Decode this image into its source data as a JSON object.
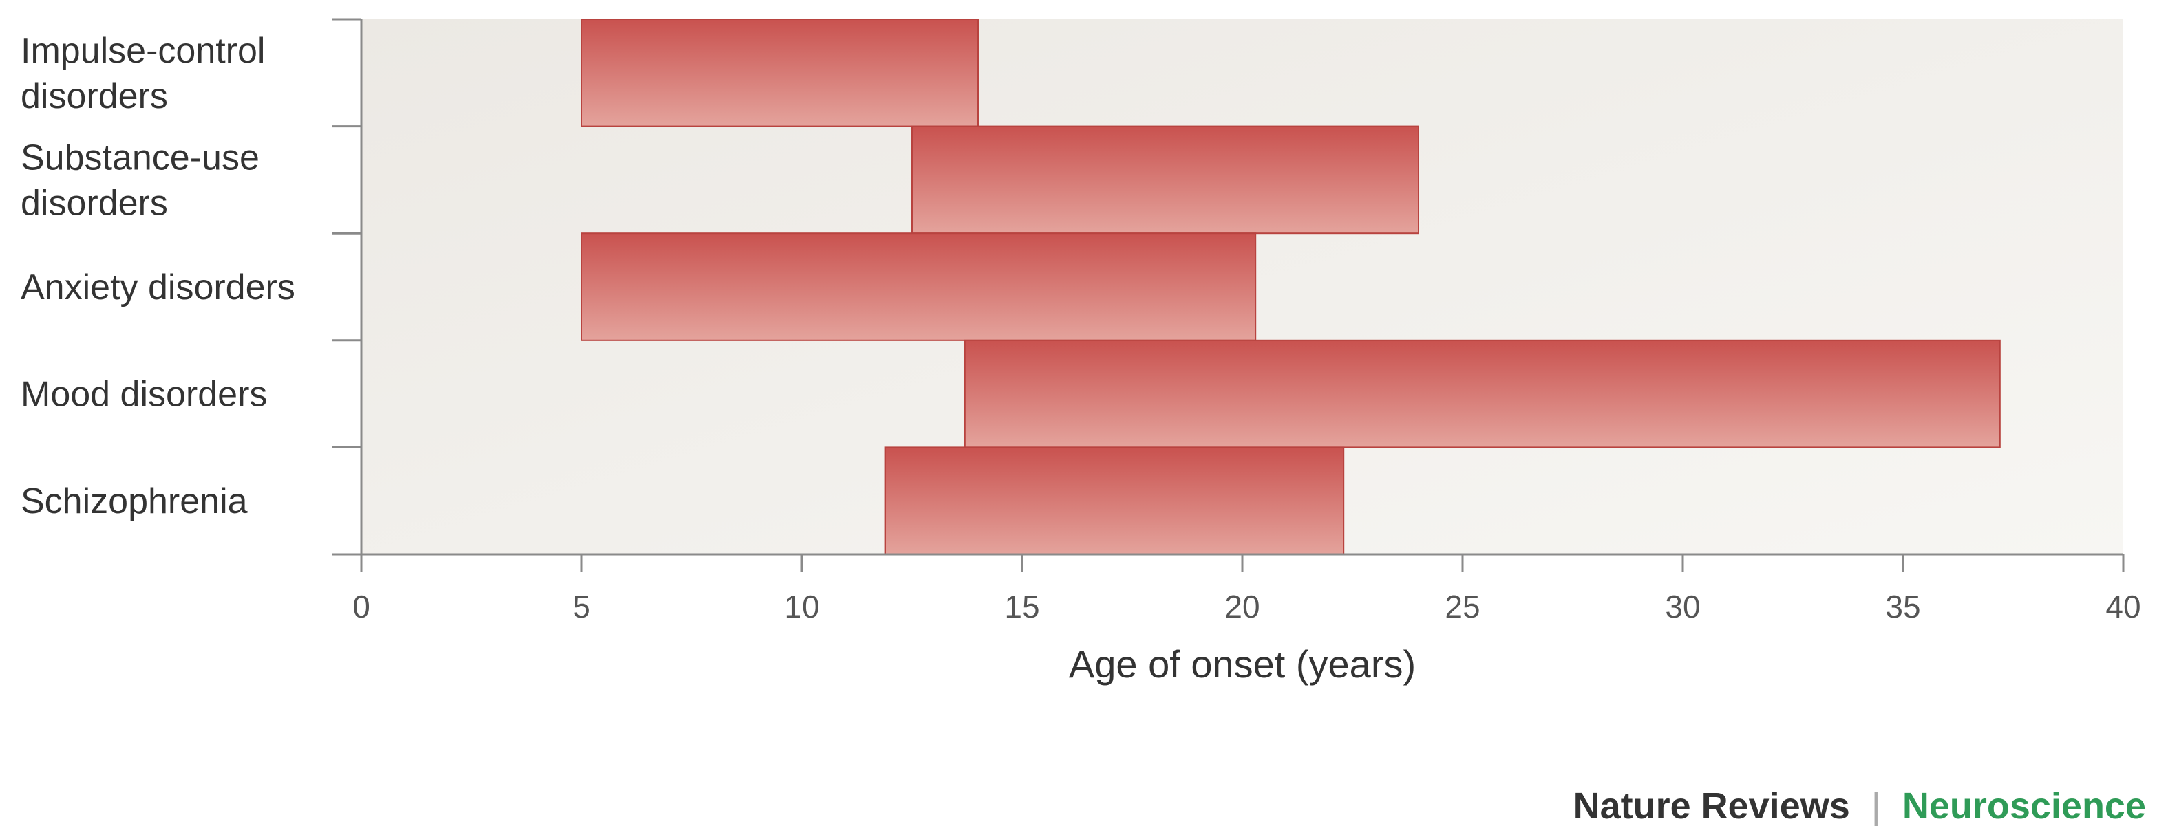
{
  "chart_data": {
    "type": "bar",
    "orientation": "horizontal-range",
    "categories": [
      "Impulse-control disorders",
      "Substance-use disorders",
      "Anxiety disorders",
      "Mood disorders",
      "Schizophrenia"
    ],
    "category_lines": [
      [
        "Impulse-control",
        "disorders"
      ],
      [
        "Substance-use",
        "disorders"
      ],
      [
        "Anxiety disorders"
      ],
      [
        "Mood disorders"
      ],
      [
        "Schizophrenia"
      ]
    ],
    "ranges": [
      [
        5,
        14
      ],
      [
        12.5,
        24
      ],
      [
        5,
        20.3
      ],
      [
        13.7,
        37.2
      ],
      [
        11.9,
        22.3
      ]
    ],
    "xlabel": "Age of onset (years)",
    "ylabel": "",
    "xlim": [
      0,
      40
    ],
    "xticks": [
      "0",
      "5",
      "10",
      "15",
      "20",
      "25",
      "30",
      "35",
      "40"
    ],
    "grid": false,
    "bar_color": "#c9524f",
    "bar_color_light": "#e4a39c"
  },
  "footer": {
    "journal": "Nature Reviews",
    "separator": "|",
    "section": "Neuroscience",
    "journal_color": "#333333",
    "section_color": "#2f9b57"
  }
}
